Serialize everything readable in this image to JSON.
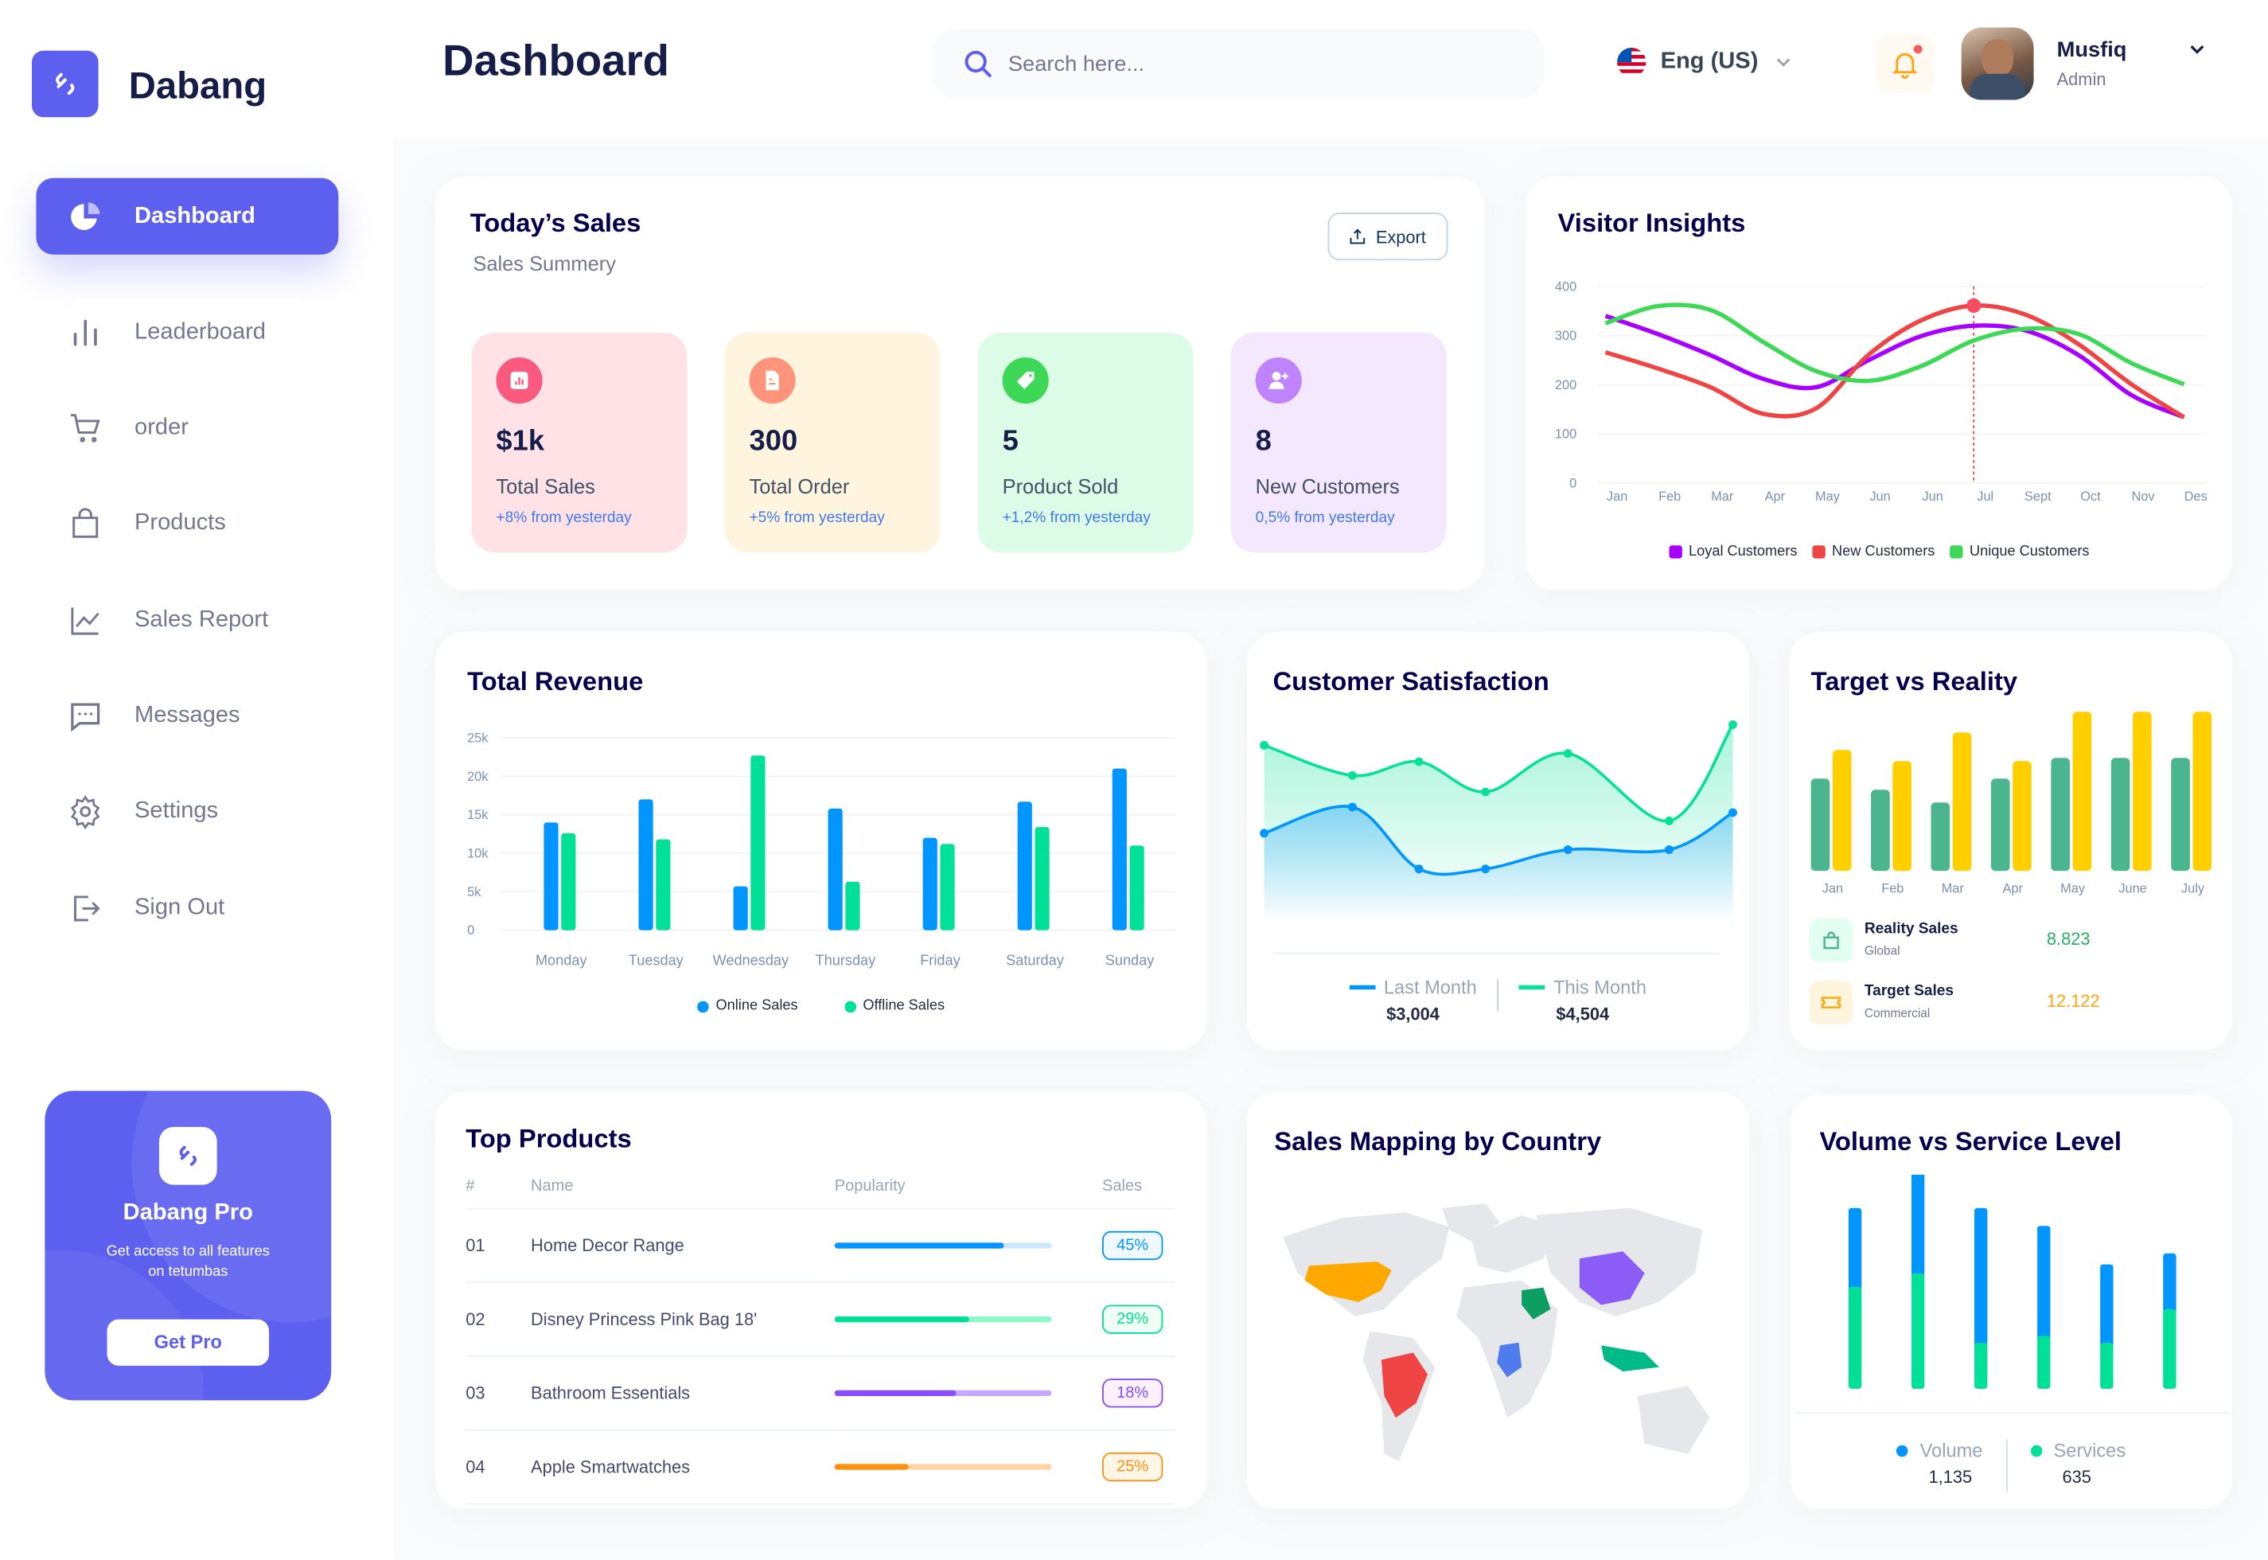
{
  "app": {
    "name": "Dabang"
  },
  "sidebar": {
    "items": [
      {
        "label": "Dashboard",
        "icon": "pie-chart-icon",
        "active": true
      },
      {
        "label": "Leaderboard",
        "icon": "bar-chart-icon"
      },
      {
        "label": "order",
        "icon": "cart-icon"
      },
      {
        "label": "Products",
        "icon": "shopping-bag-icon"
      },
      {
        "label": "Sales Report",
        "icon": "line-chart-icon"
      },
      {
        "label": "Messages",
        "icon": "message-icon"
      },
      {
        "label": "Settings",
        "icon": "gear-icon"
      },
      {
        "label": "Sign Out",
        "icon": "sign-out-icon"
      }
    ],
    "pro": {
      "title": "Dabang Pro",
      "text": "Get access to all features on tetumbas",
      "button": "Get Pro"
    }
  },
  "header": {
    "title": "Dashboard",
    "search_placeholder": "Search here...",
    "language": "Eng (US)",
    "user": {
      "name": "Musfiq",
      "role": "Admin"
    }
  },
  "todays_sales": {
    "title": "Today’s Sales",
    "subtitle": "Sales Summery",
    "export": "Export",
    "stats": [
      {
        "value": "$1k",
        "label": "Total Sales",
        "delta": "+8% from yesterday",
        "bg": "#FFE2E5",
        "icon_bg": "#FA5A7D",
        "icon": "chart-icon"
      },
      {
        "value": "300",
        "label": "Total Order",
        "delta": "+5% from yesterday",
        "bg": "#FFF4DE",
        "icon_bg": "#FF947A",
        "icon": "document-icon"
      },
      {
        "value": "5",
        "label": "Product Sold",
        "delta": "+1,2% from yesterday",
        "bg": "#DCFCE7",
        "icon_bg": "#3CD856",
        "icon": "tag-icon"
      },
      {
        "value": "8",
        "label": "New Customers",
        "delta": "0,5% from yesterday",
        "bg": "#F3E8FF",
        "icon_bg": "#BF83FF",
        "icon": "add-user-icon"
      }
    ]
  },
  "chart_data": [
    {
      "id": "visitor",
      "type": "line",
      "title": "Visitor Insights",
      "categories": [
        "Jan",
        "Feb",
        "Mar",
        "Apr",
        "May",
        "Jun",
        "Jun",
        "Jul",
        "Sept",
        "Oct",
        "Nov",
        "Des"
      ],
      "yticks": [
        0,
        100,
        200,
        300,
        400
      ],
      "ylim": [
        0,
        400
      ],
      "grid": true,
      "legend": "bottom",
      "series": [
        {
          "name": "Loyal Customers",
          "color": "#A700FF",
          "values": [
            340,
            303,
            260,
            212,
            195,
            250,
            299,
            320,
            310,
            260,
            179,
            134
          ]
        },
        {
          "name": "New Customers",
          "color": "#EF4444",
          "values": [
            266,
            233,
            195,
            141,
            152,
            261,
            331,
            361,
            342,
            282,
            201,
            134
          ]
        },
        {
          "name": "Unique Customers",
          "color": "#3CD856",
          "values": [
            325,
            360,
            352,
            287,
            228,
            208,
            238,
            290,
            314,
            303,
            244,
            201
          ]
        }
      ],
      "highlight": {
        "series": "New Customers",
        "category_index": 7
      }
    },
    {
      "id": "revenue",
      "type": "bar",
      "title": "Total Revenue",
      "categories": [
        "Monday",
        "Tuesday",
        "Wednesday",
        "Thursday",
        "Friday",
        "Saturday",
        "Sunday"
      ],
      "yticks": [
        "0",
        "5k",
        "10k",
        "15k",
        "20k",
        "25k"
      ],
      "ylim": [
        0,
        25000
      ],
      "grid": true,
      "legend": "bottom",
      "series": [
        {
          "name": "Online Sales",
          "color": "#0095FF",
          "values": [
            14000,
            17000,
            5700,
            15800,
            12000,
            16700,
            21000
          ]
        },
        {
          "name": "Offline Sales",
          "color": "#00E096",
          "values": [
            12600,
            11800,
            22700,
            6300,
            11200,
            13400,
            11000
          ]
        }
      ]
    },
    {
      "id": "satisfaction",
      "type": "area",
      "title": "Customer Satisfaction",
      "legend": "bottom",
      "series": [
        {
          "name": "Last Month",
          "color": "#0095FF",
          "total": "$3,004",
          "values": [
            59,
            78,
            33,
            33,
            47,
            47,
            74
          ]
        },
        {
          "name": "This Month",
          "color": "#07E098",
          "total": "$4,504",
          "values": [
            123,
            101,
            111,
            89,
            117,
            68,
            138
          ]
        }
      ]
    },
    {
      "id": "target",
      "type": "bar",
      "title": "Target vs Reality",
      "categories": [
        "Jan",
        "Feb",
        "Mar",
        "Apr",
        "May",
        "June",
        "July"
      ],
      "series": [
        {
          "name": "Reality Sales",
          "sub": "Global",
          "total": "8.823",
          "color": "#4AB58E",
          "values": [
            5.8,
            5.1,
            4.3,
            5.8,
            7.1,
            7.1,
            7.1
          ]
        },
        {
          "name": "Target Sales",
          "sub": "Commercial",
          "total": "12.122",
          "color": "#FFCF00",
          "values": [
            7.6,
            6.9,
            8.7,
            6.9,
            10,
            10,
            10
          ]
        }
      ]
    },
    {
      "id": "volume",
      "type": "stacked-bar",
      "title": "Volume vs Service Level",
      "legend": "bottom",
      "series": [
        {
          "name": "Volume",
          "total": "1,135",
          "color": "#0095FF",
          "values": [
            273,
            356,
            466,
            380,
            271,
            193
          ]
        },
        {
          "name": "Services",
          "total": "635",
          "color": "#00E096",
          "values": [
            352,
            399,
            159,
            183,
            159,
            275
          ]
        }
      ]
    }
  ],
  "top_products": {
    "title": "Top Products",
    "columns": [
      "#",
      "Name",
      "Popularity",
      "Sales"
    ],
    "rows": [
      {
        "num": "01",
        "name": "Home Decor Range",
        "popularity": 0.78,
        "sales": "45%",
        "color": "#0095FF",
        "bg": "#CDE7FF",
        "pill_bg": "#F0F9FF"
      },
      {
        "num": "02",
        "name": "Disney Princess Pink Bag 18'",
        "popularity": 0.62,
        "sales": "29%",
        "color": "#00E096",
        "bg": "#8CFAC7",
        "pill_bg": "#F0FDF4"
      },
      {
        "num": "03",
        "name": "Bathroom Essentials",
        "popularity": 0.56,
        "sales": "18%",
        "color": "#884DFF",
        "bg": "#C5A8FF",
        "pill_bg": "#FBF1FF"
      },
      {
        "num": "04",
        "name": "Apple Smartwatches",
        "popularity": 0.34,
        "sales": "25%",
        "color": "#FF8F0D",
        "bg": "#FFD5A4",
        "pill_bg": "#FEF6E6"
      }
    ]
  },
  "map": {
    "title": "Sales Mapping by Country"
  }
}
